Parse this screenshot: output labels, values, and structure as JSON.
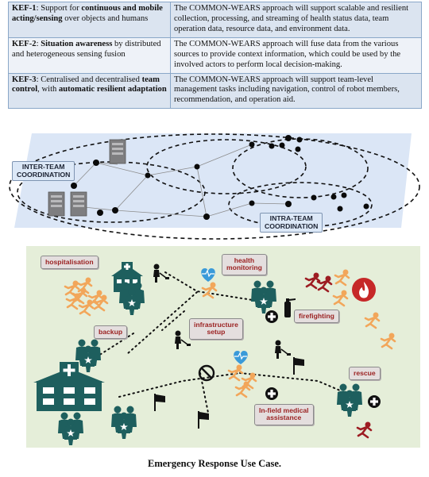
{
  "table": {
    "rows": [
      {
        "kef": "KEF-1",
        "left_parts": [
          ": Support for ",
          "continuous and mobile acting/sensing",
          " over objects and humans"
        ],
        "right": "The COMMON-WEARS approach will support scalable and resilient collection, processing, and streaming of health status data, team operation data, resource data, and environment data."
      },
      {
        "kef": "KEF-2",
        "left_parts": [
          ": ",
          "Situation awareness",
          " by distributed and heterogeneous sensing fusion"
        ],
        "right": "The COMMON-WEARS approach will fuse data from the various sources to provide context information, which could be used by the involved actors to perform local decision-making."
      },
      {
        "kef": "KEF-3",
        "left_parts": [
          ": Centralised and decentralised ",
          "team control",
          ", with ",
          "automatic resilient adaptation"
        ],
        "right": "The COMMON-WEARS approach will support team-level management tasks including navigation, control of robot members, recommendation, and operation aid."
      }
    ]
  },
  "network": {
    "inter_team_label": "INTER-TEAM\nCOORDINATION",
    "intra_team_label": "INTRA-TEAM\nCOORDINATION"
  },
  "scene": {
    "labels": {
      "hospitalisation": "hospitalisation",
      "health_monitoring": "health\nmonitoring",
      "firefighting": "firefighting",
      "backup": "backup",
      "infrastructure_setup": "infrastructure\nsetup",
      "rescue": "rescue",
      "in_field_medical": "In-field medical\nassistance"
    }
  },
  "caption": "Emergency Response Use Case.",
  "colors": {
    "scene_bg": "#e5eed9",
    "team_green": "#1e5f5e",
    "person_orange": "#f2a65a",
    "person_red": "#9d1c22",
    "heart_blue": "#3a9ad9",
    "fire_red": "#c62828"
  }
}
